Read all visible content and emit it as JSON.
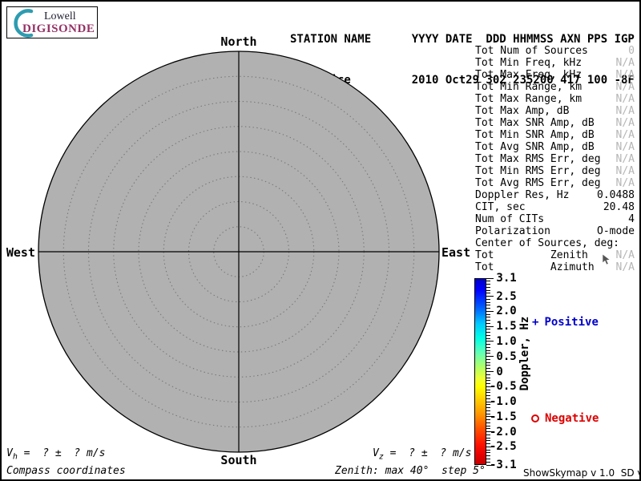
{
  "logo": {
    "line1": "Lowell",
    "line2": "DIGISONDE",
    "arc_color": "#2e9cb0",
    "digisonde_color": "#943264"
  },
  "header": {
    "labels": "STATION NAME      YYYY DATE  DDD HHMMSS AXN PPS IGP",
    "values": "Pruhonice         2010 Oct29 302 235200 417 100 -8F"
  },
  "compass": {
    "north": "North",
    "south": "South",
    "west": "West",
    "east": "East",
    "fill_color": "#b1b1b1",
    "ring_color": "#777777",
    "num_dotted_rings": 7,
    "max_zenith_deg": 40,
    "step_deg": 5
  },
  "stats": {
    "rows": [
      {
        "label": "Tot Num of Sources",
        "value": "0",
        "dim": true
      },
      {
        "label": "Tot Min Freq, kHz",
        "value": "N/A",
        "dim": true
      },
      {
        "label": "Tot Max Freq, kHz",
        "value": "N/A",
        "dim": true
      },
      {
        "label": "Tot Min Range, km",
        "value": "N/A",
        "dim": true
      },
      {
        "label": "Tot Max Range, km",
        "value": "N/A",
        "dim": true
      },
      {
        "label": "Tot Max Amp, dB",
        "value": "N/A",
        "dim": true
      },
      {
        "label": "Tot Max SNR Amp, dB",
        "value": "N/A",
        "dim": true
      },
      {
        "label": "Tot Min SNR Amp, dB",
        "value": "N/A",
        "dim": true
      },
      {
        "label": "Tot Avg SNR Amp, dB",
        "value": "N/A",
        "dim": true
      },
      {
        "label": "Tot Max RMS Err, deg",
        "value": "N/A",
        "dim": true
      },
      {
        "label": "Tot Min RMS Err, deg",
        "value": "N/A",
        "dim": true
      },
      {
        "label": "Tot Avg RMS Err, deg",
        "value": "N/A",
        "dim": true
      },
      {
        "label": "Doppler Res, Hz",
        "value": "0.0488",
        "dim": false
      },
      {
        "label": "CIT, sec",
        "value": "20.48",
        "dim": false
      },
      {
        "label": "Num of CITs",
        "value": "4",
        "dim": false
      },
      {
        "label": "Polarization",
        "value": "O-mode",
        "dim": false
      },
      {
        "label": "Center of Sources, deg:",
        "value": "",
        "dim": false
      },
      {
        "label": "Tot         Zenith",
        "value": "N/A",
        "dim": true
      },
      {
        "label": "Tot         Azimuth",
        "value": "N/A",
        "dim": true
      }
    ],
    "na_color": "#b5b5b5"
  },
  "colorbar": {
    "title": "Doppler, Hz",
    "max": 3.1,
    "min": -3.1,
    "ticks": [
      {
        "v": 3.1,
        "label": "3.1"
      },
      {
        "v": 2.5,
        "label": "2.5"
      },
      {
        "v": 2.0,
        "label": "2.0"
      },
      {
        "v": 1.5,
        "label": "1.5"
      },
      {
        "v": 1.0,
        "label": "1.0"
      },
      {
        "v": 0.5,
        "label": "0.5"
      },
      {
        "v": 0.0,
        "label": "0"
      },
      {
        "v": -0.5,
        "label": "-0.5"
      },
      {
        "v": -1.0,
        "label": "-1.0"
      },
      {
        "v": -1.5,
        "label": "-1.5"
      },
      {
        "v": -2.0,
        "label": "-2.0"
      },
      {
        "v": -2.5,
        "label": "-2.5"
      },
      {
        "v": -3.1,
        "label": "-3.1"
      }
    ],
    "legend_positive_marker": "+",
    "legend_positive_label": "Positive",
    "legend_positive_color": "#0000cc",
    "legend_negative_label": "Negative",
    "legend_negative_color": "#dd0000"
  },
  "footer": {
    "vh_symbol": "V",
    "vh_sub": "h",
    "vh_rest": " =  ? ±  ? m/s",
    "coords_label": "Compass coordinates",
    "vz_symbol": "V",
    "vz_sub": "z",
    "vz_rest": " =  ? ±  ? m/s",
    "zenith_label": "Zenith: max 40°  step 5°",
    "version": "ShowSkymap v 1.0  SD v 5.0"
  }
}
